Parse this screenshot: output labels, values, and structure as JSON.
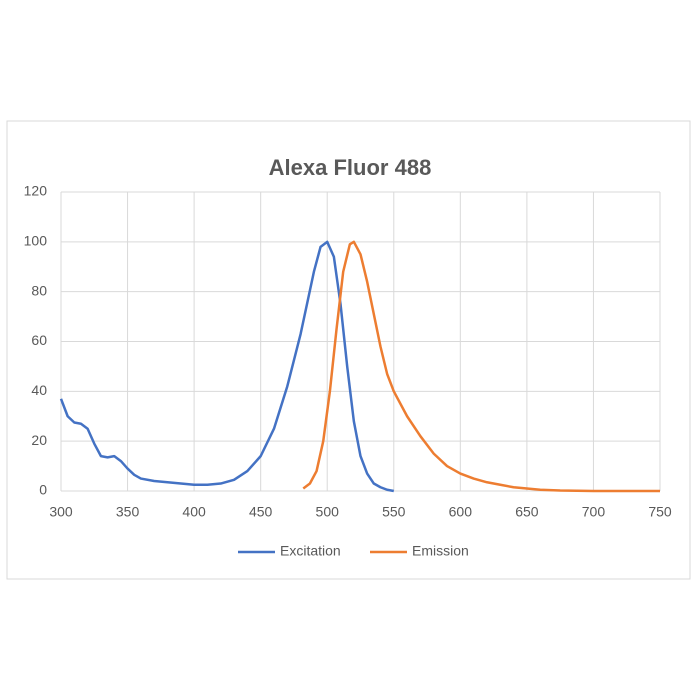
{
  "chart_data": {
    "type": "line",
    "title": "Alexa Fluor 488",
    "xlim": [
      300,
      750
    ],
    "xticks": [
      300,
      350,
      400,
      450,
      500,
      550,
      600,
      650,
      700,
      750
    ],
    "ylim": [
      0,
      120
    ],
    "yticks": [
      0,
      20,
      40,
      60,
      80,
      100,
      120
    ],
    "grid": true,
    "series": [
      {
        "name": "Excitation",
        "color": "#4472c4",
        "x": [
          300,
          305,
          310,
          315,
          320,
          325,
          330,
          335,
          340,
          345,
          350,
          355,
          360,
          370,
          380,
          390,
          400,
          410,
          420,
          430,
          440,
          450,
          460,
          470,
          480,
          490,
          495,
          500,
          505,
          510,
          515,
          520,
          525,
          530,
          535,
          540,
          545,
          550
        ],
        "values": [
          37,
          30,
          27.5,
          27,
          25,
          19,
          14,
          13.5,
          14,
          12,
          9,
          6.5,
          5,
          4,
          3.5,
          3,
          2.5,
          2.5,
          3,
          4.5,
          8,
          14,
          25,
          42,
          63,
          88,
          98,
          100,
          94,
          75,
          50,
          28,
          14,
          7,
          3,
          1.5,
          0.5,
          0
        ]
      },
      {
        "name": "Emission",
        "color": "#ed7d31",
        "x": [
          482,
          487,
          492,
          497,
          502,
          507,
          512,
          517,
          520,
          525,
          530,
          535,
          540,
          545,
          550,
          560,
          570,
          580,
          590,
          600,
          610,
          620,
          630,
          640,
          650,
          660,
          670,
          675,
          700,
          750
        ],
        "values": [
          1,
          3,
          8,
          20,
          40,
          65,
          88,
          99,
          100,
          95,
          84,
          71,
          58,
          47,
          40,
          30,
          22,
          15,
          10,
          7,
          5,
          3.5,
          2.5,
          1.5,
          1,
          0.5,
          0.3,
          0.2,
          0,
          0
        ]
      }
    ]
  }
}
